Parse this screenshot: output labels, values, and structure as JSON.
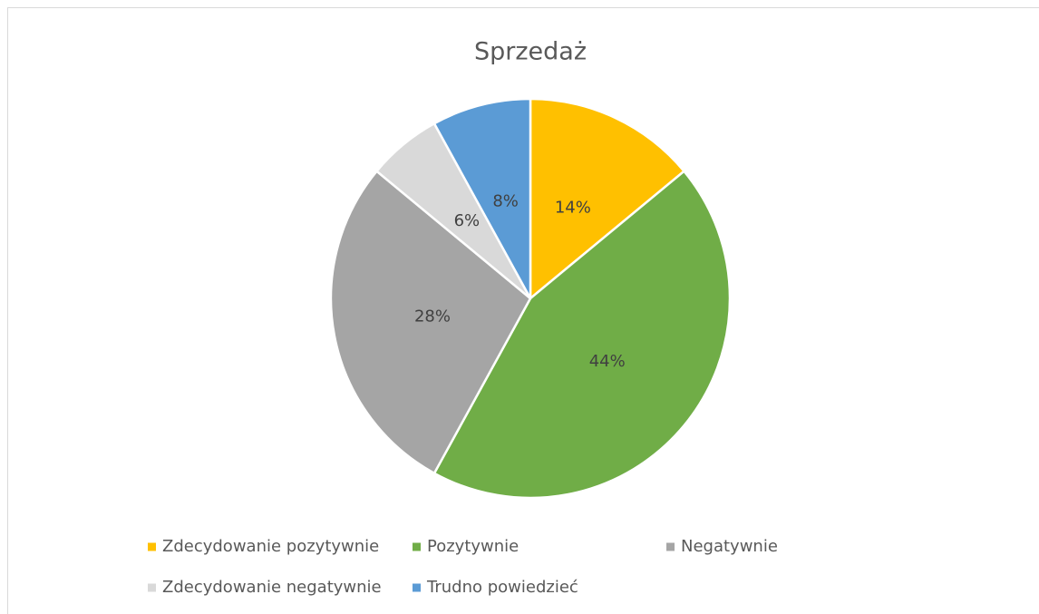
{
  "chart_data": {
    "type": "pie",
    "title": "Sprzedaż",
    "categories": [
      "Zdecydowanie pozytywnie",
      "Pozytywnie",
      "Negatywnie",
      "Zdecydowanie negatywnie",
      "Trudno powiedzieć"
    ],
    "values": [
      14,
      44,
      28,
      6,
      8
    ],
    "value_labels": [
      "14%",
      "44%",
      "28%",
      "6%",
      "8%"
    ],
    "colors": [
      "#ffc000",
      "#70ad47",
      "#a5a5a5",
      "#d9d9d9",
      "#5b9bd5"
    ],
    "legend": "bottom"
  }
}
